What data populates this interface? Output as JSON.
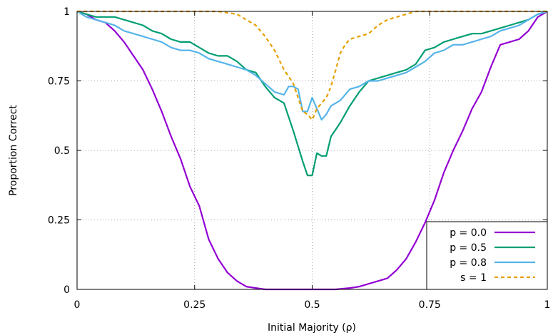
{
  "chart_data": {
    "type": "line",
    "xlabel": "Initial Majority (ρ)",
    "ylabel": "Proportion Correct",
    "xlim": [
      0,
      1
    ],
    "ylim": [
      0,
      1
    ],
    "grid": true,
    "legend_position": "bottom-right",
    "x_ticks": [
      {
        "value": 0,
        "label": "0"
      },
      {
        "value": 0.25,
        "label": "0.25"
      },
      {
        "value": 0.5,
        "label": "0.5"
      },
      {
        "value": 0.75,
        "label": "0.75"
      },
      {
        "value": 1,
        "label": "1"
      }
    ],
    "y_ticks": [
      {
        "value": 0,
        "label": "0"
      },
      {
        "value": 0.25,
        "label": "0.25"
      },
      {
        "value": 0.5,
        "label": "0.5"
      },
      {
        "value": 0.75,
        "label": "0.75"
      },
      {
        "value": 1,
        "label": "1"
      }
    ],
    "series": [
      {
        "name": "p = 0.0",
        "color": "#9400d3",
        "dash": "solid",
        "points": [
          [
            0,
            1
          ],
          [
            0.02,
            0.99
          ],
          [
            0.04,
            0.97
          ],
          [
            0.06,
            0.96
          ],
          [
            0.08,
            0.93
          ],
          [
            0.1,
            0.89
          ],
          [
            0.12,
            0.84
          ],
          [
            0.14,
            0.79
          ],
          [
            0.16,
            0.72
          ],
          [
            0.18,
            0.64
          ],
          [
            0.2,
            0.55
          ],
          [
            0.22,
            0.47
          ],
          [
            0.24,
            0.37
          ],
          [
            0.26,
            0.3
          ],
          [
            0.28,
            0.18
          ],
          [
            0.3,
            0.11
          ],
          [
            0.32,
            0.06
          ],
          [
            0.34,
            0.03
          ],
          [
            0.36,
            0.01
          ],
          [
            0.38,
            0.005
          ],
          [
            0.4,
            0
          ],
          [
            0.45,
            0
          ],
          [
            0.5,
            0
          ],
          [
            0.55,
            0
          ],
          [
            0.58,
            0.005
          ],
          [
            0.6,
            0.01
          ],
          [
            0.62,
            0.02
          ],
          [
            0.64,
            0.03
          ],
          [
            0.66,
            0.04
          ],
          [
            0.68,
            0.07
          ],
          [
            0.7,
            0.11
          ],
          [
            0.72,
            0.17
          ],
          [
            0.74,
            0.24
          ],
          [
            0.76,
            0.32
          ],
          [
            0.78,
            0.42
          ],
          [
            0.8,
            0.5
          ],
          [
            0.82,
            0.57
          ],
          [
            0.84,
            0.65
          ],
          [
            0.86,
            0.71
          ],
          [
            0.88,
            0.8
          ],
          [
            0.9,
            0.88
          ],
          [
            0.92,
            0.89
          ],
          [
            0.94,
            0.9
          ],
          [
            0.96,
            0.93
          ],
          [
            0.98,
            0.98
          ],
          [
            1,
            1
          ]
        ]
      },
      {
        "name": "p = 0.5",
        "color": "#009e73",
        "dash": "solid",
        "points": [
          [
            0,
            1
          ],
          [
            0.02,
            0.99
          ],
          [
            0.04,
            0.98
          ],
          [
            0.06,
            0.98
          ],
          [
            0.08,
            0.98
          ],
          [
            0.1,
            0.97
          ],
          [
            0.12,
            0.96
          ],
          [
            0.14,
            0.95
          ],
          [
            0.16,
            0.93
          ],
          [
            0.18,
            0.92
          ],
          [
            0.2,
            0.9
          ],
          [
            0.22,
            0.89
          ],
          [
            0.24,
            0.89
          ],
          [
            0.26,
            0.87
          ],
          [
            0.28,
            0.85
          ],
          [
            0.3,
            0.84
          ],
          [
            0.32,
            0.84
          ],
          [
            0.34,
            0.82
          ],
          [
            0.36,
            0.79
          ],
          [
            0.38,
            0.78
          ],
          [
            0.4,
            0.73
          ],
          [
            0.42,
            0.69
          ],
          [
            0.44,
            0.67
          ],
          [
            0.46,
            0.57
          ],
          [
            0.48,
            0.46
          ],
          [
            0.49,
            0.41
          ],
          [
            0.5,
            0.41
          ],
          [
            0.51,
            0.49
          ],
          [
            0.52,
            0.48
          ],
          [
            0.53,
            0.48
          ],
          [
            0.54,
            0.55
          ],
          [
            0.56,
            0.6
          ],
          [
            0.58,
            0.66
          ],
          [
            0.6,
            0.71
          ],
          [
            0.62,
            0.75
          ],
          [
            0.64,
            0.76
          ],
          [
            0.66,
            0.77
          ],
          [
            0.68,
            0.78
          ],
          [
            0.7,
            0.79
          ],
          [
            0.72,
            0.81
          ],
          [
            0.74,
            0.86
          ],
          [
            0.76,
            0.87
          ],
          [
            0.78,
            0.89
          ],
          [
            0.8,
            0.9
          ],
          [
            0.82,
            0.91
          ],
          [
            0.84,
            0.92
          ],
          [
            0.86,
            0.92
          ],
          [
            0.88,
            0.93
          ],
          [
            0.9,
            0.94
          ],
          [
            0.92,
            0.95
          ],
          [
            0.94,
            0.96
          ],
          [
            0.96,
            0.97
          ],
          [
            0.98,
            0.99
          ],
          [
            1,
            1
          ]
        ]
      },
      {
        "name": "p = 0.8",
        "color": "#56b4e9",
        "dash": "solid",
        "points": [
          [
            0,
            1
          ],
          [
            0.02,
            0.98
          ],
          [
            0.04,
            0.97
          ],
          [
            0.06,
            0.96
          ],
          [
            0.08,
            0.95
          ],
          [
            0.1,
            0.93
          ],
          [
            0.12,
            0.92
          ],
          [
            0.14,
            0.91
          ],
          [
            0.16,
            0.9
          ],
          [
            0.18,
            0.89
          ],
          [
            0.2,
            0.87
          ],
          [
            0.22,
            0.86
          ],
          [
            0.24,
            0.86
          ],
          [
            0.26,
            0.85
          ],
          [
            0.28,
            0.83
          ],
          [
            0.3,
            0.82
          ],
          [
            0.32,
            0.81
          ],
          [
            0.34,
            0.8
          ],
          [
            0.36,
            0.79
          ],
          [
            0.38,
            0.77
          ],
          [
            0.4,
            0.74
          ],
          [
            0.42,
            0.71
          ],
          [
            0.44,
            0.7
          ],
          [
            0.45,
            0.73
          ],
          [
            0.46,
            0.73
          ],
          [
            0.47,
            0.72
          ],
          [
            0.48,
            0.64
          ],
          [
            0.49,
            0.64
          ],
          [
            0.5,
            0.69
          ],
          [
            0.51,
            0.65
          ],
          [
            0.52,
            0.61
          ],
          [
            0.53,
            0.63
          ],
          [
            0.54,
            0.66
          ],
          [
            0.56,
            0.68
          ],
          [
            0.58,
            0.72
          ],
          [
            0.6,
            0.73
          ],
          [
            0.62,
            0.75
          ],
          [
            0.64,
            0.75
          ],
          [
            0.66,
            0.76
          ],
          [
            0.68,
            0.77
          ],
          [
            0.7,
            0.78
          ],
          [
            0.72,
            0.8
          ],
          [
            0.74,
            0.82
          ],
          [
            0.76,
            0.85
          ],
          [
            0.78,
            0.86
          ],
          [
            0.8,
            0.88
          ],
          [
            0.82,
            0.88
          ],
          [
            0.84,
            0.89
          ],
          [
            0.86,
            0.9
          ],
          [
            0.88,
            0.91
          ],
          [
            0.9,
            0.93
          ],
          [
            0.92,
            0.94
          ],
          [
            0.94,
            0.95
          ],
          [
            0.96,
            0.97
          ],
          [
            0.98,
            0.99
          ],
          [
            1,
            1
          ]
        ]
      },
      {
        "name": "s = 1",
        "color": "#e69f00",
        "dash": "dashed",
        "points": [
          [
            0,
            1
          ],
          [
            0.1,
            1
          ],
          [
            0.2,
            1
          ],
          [
            0.3,
            1
          ],
          [
            0.34,
            0.99
          ],
          [
            0.36,
            0.97
          ],
          [
            0.38,
            0.95
          ],
          [
            0.4,
            0.91
          ],
          [
            0.42,
            0.86
          ],
          [
            0.44,
            0.79
          ],
          [
            0.46,
            0.74
          ],
          [
            0.47,
            0.69
          ],
          [
            0.48,
            0.64
          ],
          [
            0.49,
            0.63
          ],
          [
            0.5,
            0.61
          ],
          [
            0.51,
            0.65
          ],
          [
            0.52,
            0.67
          ],
          [
            0.53,
            0.69
          ],
          [
            0.54,
            0.73
          ],
          [
            0.55,
            0.79
          ],
          [
            0.56,
            0.85
          ],
          [
            0.57,
            0.88
          ],
          [
            0.58,
            0.9
          ],
          [
            0.6,
            0.91
          ],
          [
            0.62,
            0.92
          ],
          [
            0.64,
            0.95
          ],
          [
            0.66,
            0.97
          ],
          [
            0.68,
            0.98
          ],
          [
            0.7,
            0.99
          ],
          [
            0.72,
            1
          ],
          [
            0.8,
            1
          ],
          [
            0.9,
            1
          ],
          [
            1,
            1
          ]
        ]
      }
    ]
  }
}
